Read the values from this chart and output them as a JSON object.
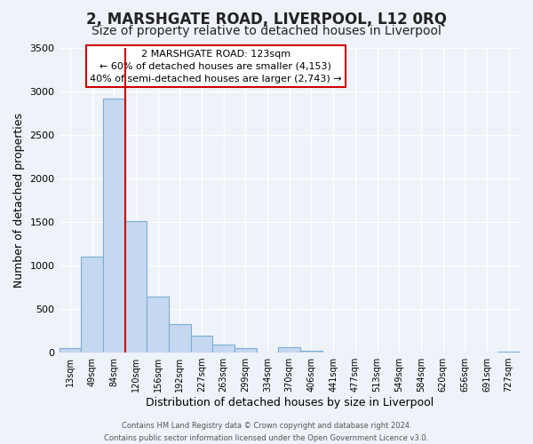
{
  "title": "2, MARSHGATE ROAD, LIVERPOOL, L12 0RQ",
  "subtitle": "Size of property relative to detached houses in Liverpool",
  "xlabel": "Distribution of detached houses by size in Liverpool",
  "ylabel": "Number of detached properties",
  "footer_line1": "Contains HM Land Registry data © Crown copyright and database right 2024.",
  "footer_line2": "Contains public sector information licensed under the Open Government Licence v3.0.",
  "bin_labels": [
    "13sqm",
    "49sqm",
    "84sqm",
    "120sqm",
    "156sqm",
    "192sqm",
    "227sqm",
    "263sqm",
    "299sqm",
    "334sqm",
    "370sqm",
    "406sqm",
    "441sqm",
    "477sqm",
    "513sqm",
    "549sqm",
    "584sqm",
    "620sqm",
    "656sqm",
    "691sqm",
    "727sqm"
  ],
  "bar_values": [
    50,
    1100,
    2920,
    1510,
    645,
    330,
    195,
    90,
    55,
    0,
    65,
    25,
    0,
    0,
    0,
    0,
    0,
    0,
    0,
    0,
    15
  ],
  "bar_color": "#c5d8f0",
  "bar_edge_color": "#7aadd4",
  "vline_x_bin": 3,
  "vline_color": "#cc0000",
  "annotation_title": "2 MARSHGATE ROAD: 123sqm",
  "annotation_line1": "← 60% of detached houses are smaller (4,153)",
  "annotation_line2": "40% of semi-detached houses are larger (2,743) →",
  "annotation_box_color": "#cc0000",
  "ylim": [
    0,
    3500
  ],
  "yticks": [
    0,
    500,
    1000,
    1500,
    2000,
    2500,
    3000,
    3500
  ],
  "bg_color": "#eef2f9",
  "grid_color": "#ffffff",
  "title_fontsize": 12,
  "subtitle_fontsize": 10
}
